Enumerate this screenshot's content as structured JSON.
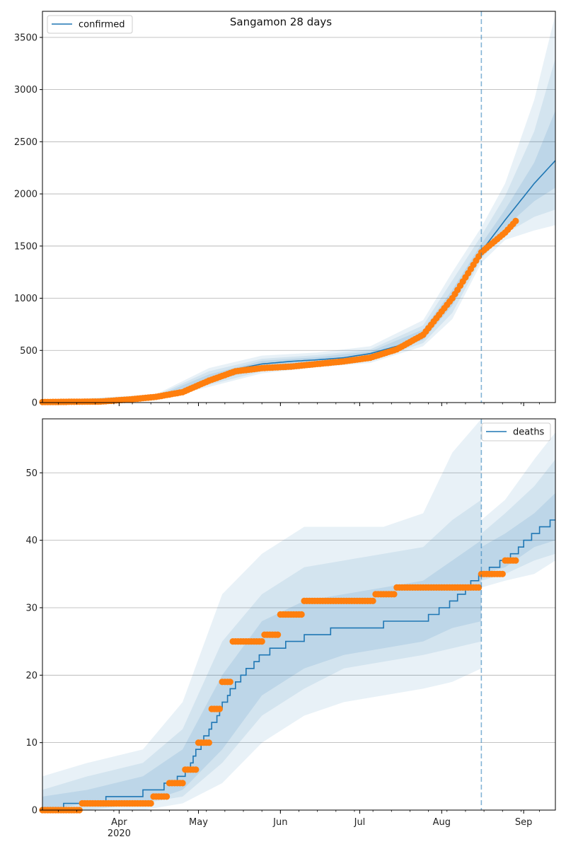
{
  "title": "Sangamon 28 days",
  "colors": {
    "model": "#1f77b4",
    "observed": "#ff7f0e",
    "grid": "#b0b0b0",
    "band": "#1f77b4"
  },
  "chart_data": [
    {
      "type": "line",
      "legend": {
        "label": "confirmed",
        "placement": "top-left"
      },
      "xlim": [
        "2020-03-03",
        "2020-09-13"
      ],
      "ylim": [
        0,
        3750
      ],
      "yticks": [
        0,
        500,
        1000,
        1500,
        2000,
        2500,
        3000,
        3500
      ],
      "forecast_start": "2020-08-16",
      "grid": true,
      "series": [
        {
          "name": "confirmed",
          "role": "model",
          "x": [
            "2020-03-03",
            "2020-03-25",
            "2020-04-05",
            "2020-04-15",
            "2020-04-25",
            "2020-05-05",
            "2020-05-15",
            "2020-05-25",
            "2020-06-05",
            "2020-06-15",
            "2020-06-25",
            "2020-07-05",
            "2020-07-15",
            "2020-07-25",
            "2020-08-05",
            "2020-08-16",
            "2020-08-25",
            "2020-09-05",
            "2020-09-13"
          ],
          "y": [
            5,
            10,
            25,
            50,
            110,
            230,
            320,
            370,
            395,
            410,
            430,
            470,
            540,
            650,
            1000,
            1450,
            1750,
            2100,
            2320
          ]
        },
        {
          "role": "observed",
          "x": [
            "2020-03-03",
            "2020-03-25",
            "2020-04-05",
            "2020-04-15",
            "2020-04-25",
            "2020-05-05",
            "2020-05-15",
            "2020-05-25",
            "2020-06-05",
            "2020-06-15",
            "2020-06-25",
            "2020-07-05",
            "2020-07-15",
            "2020-07-25",
            "2020-08-05",
            "2020-08-16",
            "2020-08-25",
            "2020-08-29"
          ],
          "y": [
            5,
            10,
            30,
            55,
            100,
            210,
            300,
            330,
            345,
            370,
            395,
            430,
            510,
            650,
            1000,
            1440,
            1630,
            1740
          ]
        }
      ],
      "bands": [
        {
          "x": [
            "2020-03-03",
            "2020-04-15",
            "2020-05-05",
            "2020-05-25",
            "2020-06-15",
            "2020-07-05",
            "2020-07-25",
            "2020-08-05",
            "2020-08-16",
            "2020-08-25",
            "2020-09-05",
            "2020-09-13"
          ],
          "lower": [
            0,
            30,
            150,
            280,
            340,
            380,
            540,
            800,
            1340,
            1560,
            1650,
            1700
          ],
          "upper": [
            15,
            80,
            330,
            450,
            480,
            540,
            790,
            1250,
            1680,
            2100,
            2900,
            3720
          ]
        },
        {
          "x": [
            "2020-03-03",
            "2020-04-15",
            "2020-05-05",
            "2020-05-25",
            "2020-06-15",
            "2020-07-05",
            "2020-07-25",
            "2020-08-05",
            "2020-08-16",
            "2020-08-25",
            "2020-09-05",
            "2020-09-13"
          ],
          "lower": [
            0,
            35,
            170,
            300,
            360,
            400,
            570,
            860,
            1380,
            1620,
            1780,
            1850
          ],
          "upper": [
            12,
            70,
            300,
            420,
            455,
            510,
            740,
            1170,
            1600,
            1980,
            2600,
            3300
          ]
        },
        {
          "x": [
            "2020-03-03",
            "2020-04-15",
            "2020-05-05",
            "2020-05-25",
            "2020-06-15",
            "2020-07-05",
            "2020-07-25",
            "2020-08-05",
            "2020-08-16",
            "2020-08-25",
            "2020-09-05",
            "2020-09-13"
          ],
          "lower": [
            2,
            40,
            195,
            330,
            385,
            430,
            600,
            930,
            1410,
            1680,
            1930,
            2060
          ],
          "upper": [
            9,
            60,
            270,
            400,
            435,
            490,
            700,
            1080,
            1520,
            1850,
            2300,
            2800
          ]
        }
      ]
    },
    {
      "type": "line",
      "legend": {
        "label": "deaths",
        "placement": "top-right"
      },
      "xlim": [
        "2020-03-03",
        "2020-09-13"
      ],
      "ylim": [
        0,
        58
      ],
      "yticks": [
        0,
        10,
        20,
        30,
        40,
        50
      ],
      "xticks": [
        {
          "date": "2020-04-01",
          "label": "Apr",
          "sublabel": "2020"
        },
        {
          "date": "2020-05-01",
          "label": "May"
        },
        {
          "date": "2020-06-01",
          "label": "Jun"
        },
        {
          "date": "2020-07-01",
          "label": "Jul"
        },
        {
          "date": "2020-08-01",
          "label": "Aug"
        },
        {
          "date": "2020-09-01",
          "label": "Sep"
        }
      ],
      "forecast_start": "2020-08-16",
      "grid": true,
      "series": [
        {
          "name": "deaths",
          "role": "model",
          "x": [
            "2020-03-03",
            "2020-03-18",
            "2020-04-05",
            "2020-04-15",
            "2020-04-25",
            "2020-05-05",
            "2020-05-15",
            "2020-05-25",
            "2020-06-05",
            "2020-06-15",
            "2020-06-25",
            "2020-07-05",
            "2020-07-15",
            "2020-07-25",
            "2020-08-05",
            "2020-08-16",
            "2020-08-25",
            "2020-09-05",
            "2020-09-13"
          ],
          "y": [
            0,
            1,
            2,
            3,
            5,
            12,
            19,
            23,
            25,
            26,
            27,
            27,
            28,
            28,
            31,
            35,
            37,
            41,
            43
          ]
        },
        {
          "role": "observed",
          "x": [
            "2020-03-03",
            "2020-03-18",
            "2020-04-01",
            "2020-04-14",
            "2020-04-20",
            "2020-04-26",
            "2020-05-01",
            "2020-05-06",
            "2020-05-10",
            "2020-05-14",
            "2020-05-20",
            "2020-05-26",
            "2020-06-01",
            "2020-06-05",
            "2020-06-10",
            "2020-06-20",
            "2020-07-01",
            "2020-07-07",
            "2020-07-15",
            "2020-07-25",
            "2020-08-05",
            "2020-08-12",
            "2020-08-16",
            "2020-08-20",
            "2020-08-25",
            "2020-08-29"
          ],
          "y": [
            0,
            1,
            1,
            2,
            4,
            6,
            10,
            15,
            19,
            25,
            25,
            26,
            29,
            29,
            31,
            31,
            31,
            32,
            33,
            33,
            33,
            33,
            35,
            35,
            37,
            37
          ]
        }
      ],
      "bands": [
        {
          "x": [
            "2020-03-03",
            "2020-03-20",
            "2020-04-10",
            "2020-04-25",
            "2020-05-10",
            "2020-05-25",
            "2020-06-10",
            "2020-06-25",
            "2020-07-10",
            "2020-07-25",
            "2020-08-05",
            "2020-08-16",
            "2020-08-16",
            "2020-08-25",
            "2020-09-05",
            "2020-09-13"
          ],
          "lower": [
            0,
            0,
            0,
            1,
            4,
            10,
            14,
            16,
            17,
            18,
            19,
            21,
            33,
            34,
            35,
            37
          ],
          "upper": [
            5,
            7,
            9,
            16,
            32,
            38,
            42,
            42,
            42,
            44,
            53,
            58,
            43,
            46,
            52,
            56
          ]
        },
        {
          "x": [
            "2020-03-03",
            "2020-03-20",
            "2020-04-10",
            "2020-04-25",
            "2020-05-10",
            "2020-05-25",
            "2020-06-10",
            "2020-06-25",
            "2020-07-10",
            "2020-07-25",
            "2020-08-05",
            "2020-08-16",
            "2020-08-16",
            "2020-08-25",
            "2020-09-05",
            "2020-09-13"
          ],
          "lower": [
            0,
            0,
            1,
            2,
            7,
            14,
            18,
            21,
            22,
            23,
            24,
            25,
            34,
            35,
            37,
            38
          ],
          "upper": [
            3,
            5,
            7,
            12,
            25,
            32,
            36,
            37,
            38,
            39,
            43,
            46,
            41,
            44,
            48,
            52
          ]
        },
        {
          "x": [
            "2020-03-03",
            "2020-03-20",
            "2020-04-10",
            "2020-04-25",
            "2020-05-10",
            "2020-05-25",
            "2020-06-10",
            "2020-06-25",
            "2020-07-10",
            "2020-07-25",
            "2020-08-05",
            "2020-08-16",
            "2020-08-16",
            "2020-08-25",
            "2020-09-05",
            "2020-09-13"
          ],
          "lower": [
            0,
            1,
            1,
            3,
            9,
            17,
            21,
            23,
            24,
            25,
            27,
            28,
            35,
            36,
            39,
            40
          ],
          "upper": [
            2,
            3,
            5,
            9,
            20,
            28,
            31,
            32,
            33,
            34,
            37,
            40,
            39,
            41,
            44,
            47
          ]
        }
      ]
    }
  ]
}
